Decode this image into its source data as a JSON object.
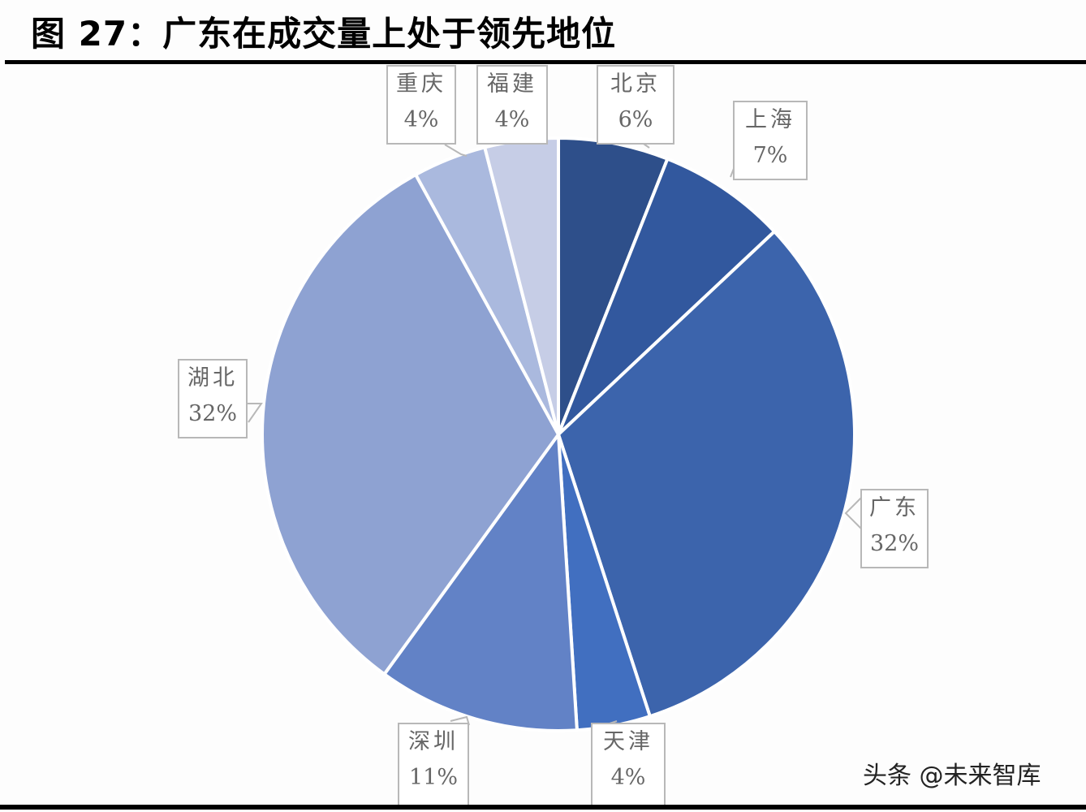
{
  "title": "图 27：广东在成交量上处于领先地位",
  "watermark": "头条 @未来智库",
  "chart_data": {
    "type": "pie",
    "title": "图 27：广东在成交量上处于领先地位",
    "start_angle_deg": 0,
    "direction": "clockwise",
    "categories": [
      "北京",
      "上海",
      "广东",
      "天津",
      "深圳",
      "湖北",
      "重庆",
      "福建"
    ],
    "values": [
      6,
      7,
      32,
      4,
      11,
      32,
      4,
      4
    ],
    "labels": [
      "6%",
      "7%",
      "32%",
      "4%",
      "11%",
      "32%",
      "4%",
      "4%"
    ],
    "colors": [
      "#2e4f8a",
      "#32589e",
      "#3c64ac",
      "#416fc0",
      "#6282c6",
      "#8ea2d2",
      "#aab9de",
      "#c6cde6"
    ],
    "legend": "none (data callout labels)"
  },
  "labels": {
    "beijing": {
      "name": "北京",
      "value": "6%"
    },
    "shanghai": {
      "name": "上海",
      "value": "7%"
    },
    "guangdong": {
      "name": "广东",
      "value": "32%"
    },
    "tianjin": {
      "name": "天津",
      "value": "4%"
    },
    "shenzhen": {
      "name": "深圳",
      "value": "11%"
    },
    "hubei": {
      "name": "湖北",
      "value": "32%"
    },
    "chongqing": {
      "name": "重庆",
      "value": "4%"
    },
    "fujian": {
      "name": "福建",
      "value": "4%"
    }
  }
}
